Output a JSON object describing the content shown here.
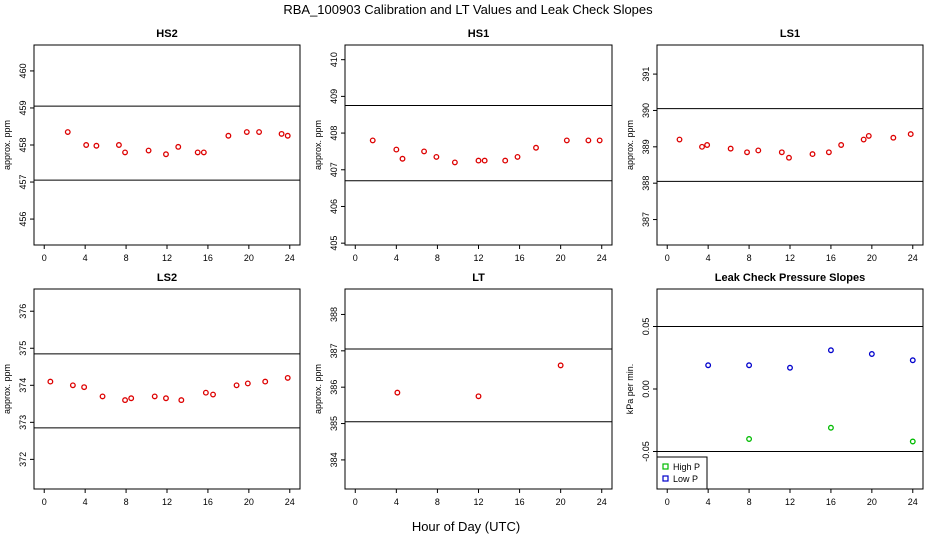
{
  "figure": {
    "title": "RBA_100903  Calibration and LT Values and Leak Check Slopes",
    "xlabel": "Hour of Day (UTC)"
  },
  "colors": {
    "co2_points": "#dd0000",
    "high_p": "#00bb00",
    "low_p": "#0000cc",
    "lines": "#000000"
  },
  "chart_data": [
    {
      "type": "scatter",
      "title": "HS2",
      "ylabel": "approx. ppm",
      "xlim": [
        -1,
        25
      ],
      "ylim": [
        455.3,
        460.7
      ],
      "xticks": [
        0,
        4,
        8,
        12,
        16,
        20,
        24
      ],
      "yticks": [
        456,
        457,
        458,
        459,
        460
      ],
      "hlines": [
        459.05,
        457.05
      ],
      "color": "#dd0000",
      "x": [
        2.3,
        4.1,
        5.1,
        7.3,
        7.9,
        10.2,
        11.9,
        13.1,
        15.0,
        15.6,
        18.0,
        19.8,
        21.0,
        23.2,
        23.8
      ],
      "y": [
        458.35,
        458.0,
        457.98,
        458.0,
        457.8,
        457.85,
        457.75,
        457.95,
        457.8,
        457.8,
        458.25,
        458.35,
        458.35,
        458.3,
        458.25
      ]
    },
    {
      "type": "scatter",
      "title": "HS1",
      "ylabel": "approx. ppm",
      "xlim": [
        -1,
        25
      ],
      "ylim": [
        404.95,
        410.4
      ],
      "xticks": [
        0,
        4,
        8,
        12,
        16,
        20,
        24
      ],
      "yticks": [
        405,
        406,
        407,
        408,
        409,
        410
      ],
      "hlines": [
        408.75,
        406.7
      ],
      "color": "#dd0000",
      "x": [
        1.7,
        4.0,
        4.6,
        6.7,
        7.9,
        9.7,
        12.0,
        12.6,
        14.6,
        15.8,
        17.6,
        20.6,
        22.7,
        23.8
      ],
      "y": [
        407.8,
        407.55,
        407.3,
        407.5,
        407.35,
        407.2,
        407.25,
        407.25,
        407.25,
        407.35,
        407.6,
        407.8,
        407.8,
        407.8
      ]
    },
    {
      "type": "scatter",
      "title": "LS1",
      "ylabel": "approx. ppm",
      "xlim": [
        -1,
        25
      ],
      "ylim": [
        386.3,
        391.8
      ],
      "xticks": [
        0,
        4,
        8,
        12,
        16,
        20,
        24
      ],
      "yticks": [
        387,
        388,
        389,
        390,
        391
      ],
      "hlines": [
        390.05,
        388.05
      ],
      "color": "#dd0000",
      "x": [
        1.2,
        3.4,
        3.9,
        6.2,
        7.8,
        8.9,
        11.2,
        11.9,
        14.2,
        15.8,
        17.0,
        19.2,
        19.7,
        22.1,
        23.8
      ],
      "y": [
        389.2,
        389.0,
        389.05,
        388.95,
        388.85,
        388.9,
        388.85,
        388.7,
        388.8,
        388.85,
        389.05,
        389.2,
        389.3,
        389.25,
        389.35
      ]
    },
    {
      "type": "scatter",
      "title": "LS2",
      "ylabel": "approx. ppm",
      "xlim": [
        -1,
        25
      ],
      "ylim": [
        371.2,
        376.6
      ],
      "xticks": [
        0,
        4,
        8,
        12,
        16,
        20,
        24
      ],
      "yticks": [
        372,
        373,
        374,
        375,
        376
      ],
      "hlines": [
        374.85,
        372.85
      ],
      "color": "#dd0000",
      "x": [
        0.6,
        2.8,
        3.9,
        5.7,
        7.9,
        8.5,
        10.8,
        11.9,
        13.4,
        15.8,
        16.5,
        18.8,
        19.9,
        21.6,
        23.8
      ],
      "y": [
        374.1,
        374.0,
        373.95,
        373.7,
        373.6,
        373.65,
        373.7,
        373.65,
        373.6,
        373.8,
        373.75,
        374.0,
        374.05,
        374.1,
        374.2
      ]
    },
    {
      "type": "scatter",
      "title": "LT",
      "ylabel": "approx. ppm",
      "xlim": [
        -1,
        25
      ],
      "ylim": [
        383.2,
        388.7
      ],
      "xticks": [
        0,
        4,
        8,
        12,
        16,
        20,
        24
      ],
      "yticks": [
        384,
        385,
        386,
        387,
        388
      ],
      "hlines": [
        387.05,
        385.05
      ],
      "color": "#dd0000",
      "x": [
        4.1,
        12.0,
        20.0
      ],
      "y": [
        385.85,
        385.75,
        386.6
      ]
    },
    {
      "type": "scatter",
      "title": "Leak Check Pressure Slopes",
      "ylabel": "kPa per min.",
      "xlim": [
        -1,
        25
      ],
      "ylim": [
        -0.08,
        0.08
      ],
      "xticks": [
        0,
        4,
        8,
        12,
        16,
        20,
        24
      ],
      "yticks": [
        -0.05,
        0.0,
        0.05
      ],
      "ytick_labels": [
        "-0.05",
        "0.00",
        "0.05"
      ],
      "hlines": [
        0.05,
        -0.05
      ],
      "series": [
        {
          "name": "High P",
          "color": "#00bb00",
          "x": [
            8,
            16,
            24
          ],
          "y": [
            -0.04,
            -0.031,
            -0.042
          ]
        },
        {
          "name": "Low P",
          "color": "#0000cc",
          "x": [
            4,
            8,
            12,
            16,
            20,
            24
          ],
          "y": [
            0.019,
            0.019,
            0.017,
            0.031,
            0.028,
            0.023
          ]
        }
      ],
      "legend": "bottom-left"
    }
  ]
}
